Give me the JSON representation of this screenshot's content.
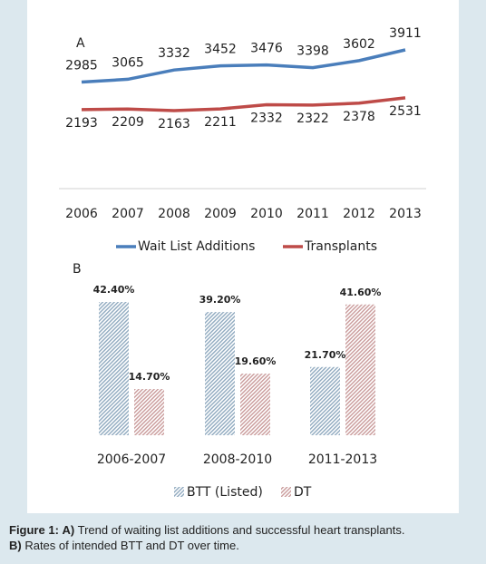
{
  "chart_data": [
    {
      "type": "line",
      "panel_label": "A",
      "categories": [
        "2006",
        "2007",
        "2008",
        "2009",
        "2010",
        "2011",
        "2012",
        "2013"
      ],
      "series": [
        {
          "name": "Wait List Additions",
          "color": "#4a7ebb",
          "values": [
            2985,
            3065,
            3332,
            3452,
            3476,
            3398,
            3602,
            3911
          ]
        },
        {
          "name": "Transplants",
          "color": "#be4b48",
          "values": [
            2193,
            2209,
            2163,
            2211,
            2332,
            2322,
            2378,
            2531
          ]
        }
      ],
      "legend_position": "bottom"
    },
    {
      "type": "bar",
      "panel_label": "B",
      "categories": [
        "2006-2007",
        "2008-2010",
        "2011-2013"
      ],
      "series": [
        {
          "name": "BTT (Listed)",
          "color": "#8fa9bf",
          "values": [
            42.4,
            39.2,
            21.7
          ],
          "value_labels": [
            "42.40%",
            "39.20%",
            "21.70%"
          ]
        },
        {
          "name": "DT",
          "color": "#c99a9a",
          "values": [
            14.7,
            19.6,
            41.6
          ],
          "value_labels": [
            "14.70%",
            "19.60%",
            "41.60%"
          ]
        }
      ],
      "legend_position": "bottom"
    }
  ],
  "caption": {
    "figure": "Figure 1:",
    "part_a": "A)",
    "text_a": " Trend of waiting list additions and successful heart transplants.",
    "part_b": "B)",
    "text_b": " Rates of intended BTT and DT over time."
  }
}
